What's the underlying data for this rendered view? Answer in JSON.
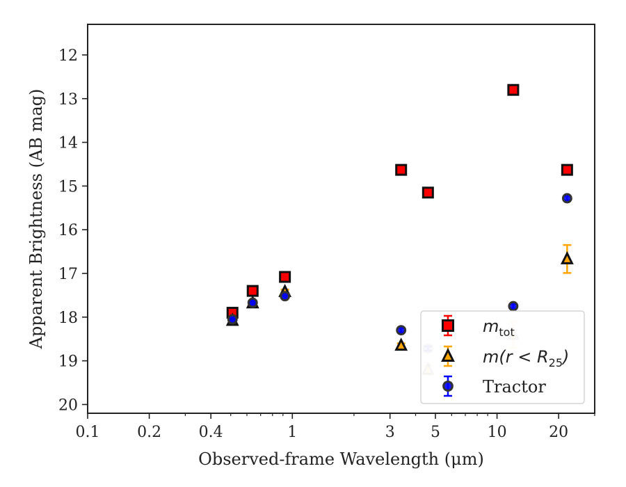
{
  "chart_data": {
    "type": "scatter",
    "xlabel": "Observed-frame Wavelength (μm)",
    "ylabel": "Apparent Brightness (AB mag)",
    "xscale": "log",
    "xlim": [
      0.1,
      30
    ],
    "ylim": [
      20.2,
      11.3
    ],
    "y_inverted": true,
    "x_ticks": [
      0.1,
      0.2,
      0.4,
      1,
      3,
      5,
      10,
      20
    ],
    "x_tick_labels": [
      "0.1",
      "0.2",
      "0.4",
      "1",
      "3",
      "5",
      "10",
      "20"
    ],
    "y_ticks": [
      12,
      13,
      14,
      15,
      16,
      17,
      18,
      19,
      20
    ],
    "y_tick_labels": [
      "12",
      "13",
      "14",
      "15",
      "16",
      "17",
      "18",
      "19",
      "20"
    ],
    "grid": false,
    "legend_position": "bottom-right",
    "series": [
      {
        "name": "m_tot",
        "legend_main": "m",
        "legend_sub": "tot",
        "marker": "square",
        "color": "#ff0000",
        "edge_color": "#111111",
        "points": [
          {
            "x": 0.51,
            "y": 17.9,
            "err": 0.05
          },
          {
            "x": 0.64,
            "y": 17.4,
            "err": 0.05
          },
          {
            "x": 0.92,
            "y": 17.08,
            "err": 0.05
          },
          {
            "x": 3.4,
            "y": 14.63,
            "err": 0.05
          },
          {
            "x": 4.6,
            "y": 15.15,
            "err": 0.05
          },
          {
            "x": 12.0,
            "y": 12.8,
            "err": 0.05
          },
          {
            "x": 22.0,
            "y": 14.63,
            "err": 0.05
          }
        ]
      },
      {
        "name": "m(r < R25)",
        "legend_main": "m(r < R",
        "legend_sub": "25",
        "legend_close": ")",
        "marker": "triangle",
        "color": "#ffa500",
        "edge_color": "#111111",
        "points": [
          {
            "x": 0.51,
            "y": 18.08,
            "err": 0.05
          },
          {
            "x": 0.64,
            "y": 17.68,
            "err": 0.05
          },
          {
            "x": 0.92,
            "y": 17.42,
            "err": 0.05
          },
          {
            "x": 3.4,
            "y": 18.65,
            "err": 0.05
          },
          {
            "x": 4.6,
            "y": 19.2,
            "err": 0.1,
            "faded": true
          },
          {
            "x": 12.0,
            "y": 18.4,
            "err": 0.3,
            "faded": true
          },
          {
            "x": 22.0,
            "y": 16.67,
            "err": 0.32
          }
        ]
      },
      {
        "name": "Tractor",
        "marker": "circle",
        "color": "#0000ff",
        "edge_color": "#333333",
        "points": [
          {
            "x": 0.51,
            "y": 18.05,
            "err": 0.05
          },
          {
            "x": 0.64,
            "y": 17.67,
            "err": 0.05
          },
          {
            "x": 0.92,
            "y": 17.52,
            "err": 0.05
          },
          {
            "x": 3.4,
            "y": 18.3,
            "err": 0.05
          },
          {
            "x": 4.6,
            "y": 18.72,
            "err": 0.05,
            "faded": true
          },
          {
            "x": 12.0,
            "y": 17.75,
            "err": 0.05
          },
          {
            "x": 22.0,
            "y": 15.28,
            "err": 0.05
          }
        ]
      }
    ],
    "legend": [
      {
        "label_main": "m",
        "label_sub": "tot",
        "marker": "square"
      },
      {
        "label_main": "m(r < R",
        "label_sub": "25",
        "label_close": ")",
        "marker": "triangle"
      },
      {
        "label_main": "Tractor",
        "marker": "circle"
      }
    ]
  }
}
